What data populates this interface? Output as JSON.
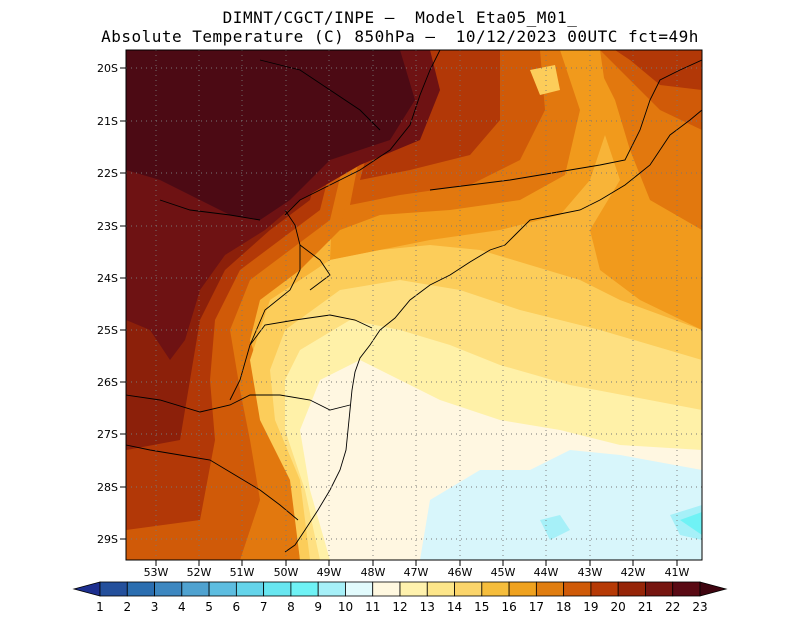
{
  "header": {
    "line1": "DIMNT/CGCT/INPE –  Model Eta05_M01_",
    "line2": "Absolute Temperature (C) 850hPa –  10/12/2023 00UTC fct=49h"
  },
  "axes": {
    "lat_labels": [
      "20S",
      "21S",
      "22S",
      "23S",
      "24S",
      "25S",
      "26S",
      "27S",
      "28S",
      "29S"
    ],
    "lon_labels": [
      "53W",
      "52W",
      "51W",
      "50W",
      "49W",
      "48W",
      "47W",
      "46W",
      "45W",
      "44W",
      "43W",
      "42W",
      "41W"
    ]
  },
  "colorbar": {
    "labels": [
      "1",
      "2",
      "3",
      "4",
      "5",
      "6",
      "7",
      "8",
      "9",
      "10",
      "11",
      "12",
      "13",
      "14",
      "15",
      "16",
      "17",
      "18",
      "19",
      "20",
      "21",
      "22",
      "23"
    ],
    "colors": [
      "#1d2f8f",
      "#24509c",
      "#2b6eb0",
      "#3d87c0",
      "#4fa2d0",
      "#5dbde0",
      "#64d4ea",
      "#68e6f0",
      "#6ff2f5",
      "#a6f0f8",
      "#e2fbfd",
      "#fff8e0",
      "#fff2ae",
      "#fde68a",
      "#fbd56b",
      "#f5bd3c",
      "#efa21f",
      "#e07d10",
      "#cf5a08",
      "#b63a06",
      "#962508",
      "#761510",
      "#5a0a14",
      "#3f0510"
    ]
  },
  "legend_colors": {
    "t11": "#d8f6fb",
    "t12": "#fff7e1",
    "t13": "#fff1a8",
    "t14": "#fee081",
    "t15": "#fccd5a",
    "t16": "#f8b438",
    "t17": "#f19a1c",
    "t18": "#e2780e",
    "t19": "#d05a08",
    "t20": "#b23807",
    "t21": "#8c200a",
    "t22": "#6e1213",
    "t23": "#4c0a14"
  }
}
